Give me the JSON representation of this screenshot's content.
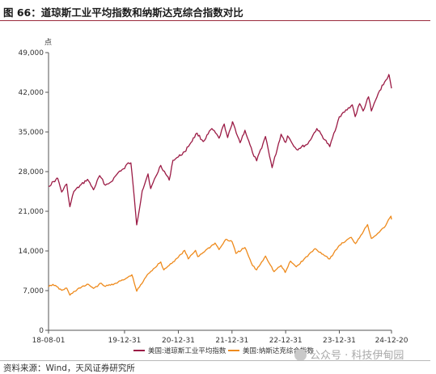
{
  "figure": {
    "title": "图 66：道琼斯工业平均指数和纳斯达克综合指数对比",
    "source": "资料来源：Wind，天风证券研究所",
    "watermark": "公众号 · 科技伊甸园"
  },
  "colors": {
    "dow": "#9b1b45",
    "nasdaq": "#ee8a1c",
    "title_rule": "#9a2a3c"
  },
  "chart_data": {
    "type": "line",
    "yunit": "点",
    "ylim": [
      0,
      49000
    ],
    "yticks": [
      0,
      7000,
      14000,
      21000,
      28000,
      35000,
      42000,
      49000
    ],
    "ytick_labels": [
      "0",
      "7,000",
      "14,000",
      "21,000",
      "28,000",
      "35,000",
      "42,000",
      "49,000"
    ],
    "xlim": [
      "2018-08-01",
      "2024-12-20"
    ],
    "xticks": [
      "2018-08-01",
      "2019-12-31",
      "2020-12-31",
      "2021-12-31",
      "2022-12-31",
      "2023-12-31",
      "2024-12-20"
    ],
    "xtick_labels": [
      "18-08-01",
      "19-12-31",
      "20-12-31",
      "21-12-31",
      "22-12-31",
      "23-12-31",
      "24-12-20"
    ],
    "legend_position": "bottom",
    "series": [
      {
        "name": "美国:道琼斯工业平均指数",
        "color": "#9b1b45",
        "points": [
          [
            "2018-08-01",
            25400
          ],
          [
            "2018-09-20",
            26600
          ],
          [
            "2018-10-03",
            26800
          ],
          [
            "2018-10-29",
            24400
          ],
          [
            "2018-12-03",
            25800
          ],
          [
            "2018-12-24",
            21800
          ],
          [
            "2019-01-20",
            24500
          ],
          [
            "2019-04-23",
            26650
          ],
          [
            "2019-06-03",
            24800
          ],
          [
            "2019-07-15",
            27300
          ],
          [
            "2019-08-23",
            25600
          ],
          [
            "2019-10-01",
            26200
          ],
          [
            "2019-11-27",
            28100
          ],
          [
            "2019-12-31",
            28540
          ],
          [
            "2020-01-17",
            29350
          ],
          [
            "2020-02-12",
            29550
          ],
          [
            "2020-02-28",
            25400
          ],
          [
            "2020-03-23",
            18600
          ],
          [
            "2020-04-29",
            24600
          ],
          [
            "2020-06-08",
            27600
          ],
          [
            "2020-06-26",
            25000
          ],
          [
            "2020-09-02",
            29100
          ],
          [
            "2020-10-30",
            26500
          ],
          [
            "2020-11-24",
            30000
          ],
          [
            "2020-12-31",
            30600
          ],
          [
            "2021-02-12",
            31500
          ],
          [
            "2021-05-07",
            34800
          ],
          [
            "2021-06-18",
            33300
          ],
          [
            "2021-08-16",
            35600
          ],
          [
            "2021-10-04",
            33900
          ],
          [
            "2021-11-08",
            36400
          ],
          [
            "2021-12-01",
            34000
          ],
          [
            "2021-12-31",
            36300
          ],
          [
            "2022-01-04",
            36800
          ],
          [
            "2022-02-24",
            33100
          ],
          [
            "2022-03-29",
            35300
          ],
          [
            "2022-05-20",
            31300
          ],
          [
            "2022-06-17",
            29900
          ],
          [
            "2022-08-16",
            34200
          ],
          [
            "2022-09-30",
            28700
          ],
          [
            "2022-11-30",
            34600
          ],
          [
            "2022-12-31",
            33150
          ],
          [
            "2023-01-13",
            34300
          ],
          [
            "2023-03-15",
            31900
          ],
          [
            "2023-05-31",
            32900
          ],
          [
            "2023-07-31",
            35600
          ],
          [
            "2023-10-27",
            32400
          ],
          [
            "2023-12-31",
            37700
          ],
          [
            "2024-03-28",
            39800
          ],
          [
            "2024-04-17",
            37700
          ],
          [
            "2024-05-17",
            40000
          ],
          [
            "2024-06-10",
            38700
          ],
          [
            "2024-07-17",
            41200
          ],
          [
            "2024-08-05",
            38700
          ],
          [
            "2024-09-30",
            42300
          ],
          [
            "2024-11-29",
            44900
          ],
          [
            "2024-12-04",
            45000
          ],
          [
            "2024-12-20",
            42700
          ]
        ]
      },
      {
        "name": "美国:纳斯达克综合指数",
        "color": "#ee8a1c",
        "points": [
          [
            "2018-08-01",
            7700
          ],
          [
            "2018-08-31",
            8100
          ],
          [
            "2018-10-29",
            7050
          ],
          [
            "2018-12-03",
            7450
          ],
          [
            "2018-12-24",
            6200
          ],
          [
            "2019-02-15",
            7300
          ],
          [
            "2019-04-30",
            8100
          ],
          [
            "2019-06-03",
            7400
          ],
          [
            "2019-07-26",
            8300
          ],
          [
            "2019-08-23",
            7750
          ],
          [
            "2019-10-31",
            8300
          ],
          [
            "2019-12-31",
            8970
          ],
          [
            "2020-02-19",
            9800
          ],
          [
            "2020-03-23",
            6900
          ],
          [
            "2020-06-10",
            10000
          ],
          [
            "2020-09-02",
            12050
          ],
          [
            "2020-09-23",
            10650
          ],
          [
            "2020-12-31",
            12900
          ],
          [
            "2021-02-12",
            14100
          ],
          [
            "2021-03-08",
            12600
          ],
          [
            "2021-04-27",
            14100
          ],
          [
            "2021-05-12",
            13000
          ],
          [
            "2021-09-07",
            15400
          ],
          [
            "2021-10-04",
            14250
          ],
          [
            "2021-11-19",
            16050
          ],
          [
            "2021-12-31",
            15650
          ],
          [
            "2022-01-27",
            13550
          ],
          [
            "2022-03-29",
            14600
          ],
          [
            "2022-05-20",
            11400
          ],
          [
            "2022-06-16",
            10650
          ],
          [
            "2022-08-16",
            13100
          ],
          [
            "2022-10-13",
            10350
          ],
          [
            "2022-11-30",
            11450
          ],
          [
            "2022-12-28",
            10200
          ],
          [
            "2023-02-02",
            12200
          ],
          [
            "2023-03-13",
            11200
          ],
          [
            "2023-07-19",
            14400
          ],
          [
            "2023-10-27",
            12600
          ],
          [
            "2023-12-31",
            15000
          ],
          [
            "2024-03-21",
            16400
          ],
          [
            "2024-04-19",
            15300
          ],
          [
            "2024-07-10",
            18650
          ],
          [
            "2024-08-05",
            16200
          ],
          [
            "2024-10-31",
            18100
          ],
          [
            "2024-12-16",
            20150
          ],
          [
            "2024-12-20",
            19550
          ]
        ]
      }
    ]
  }
}
